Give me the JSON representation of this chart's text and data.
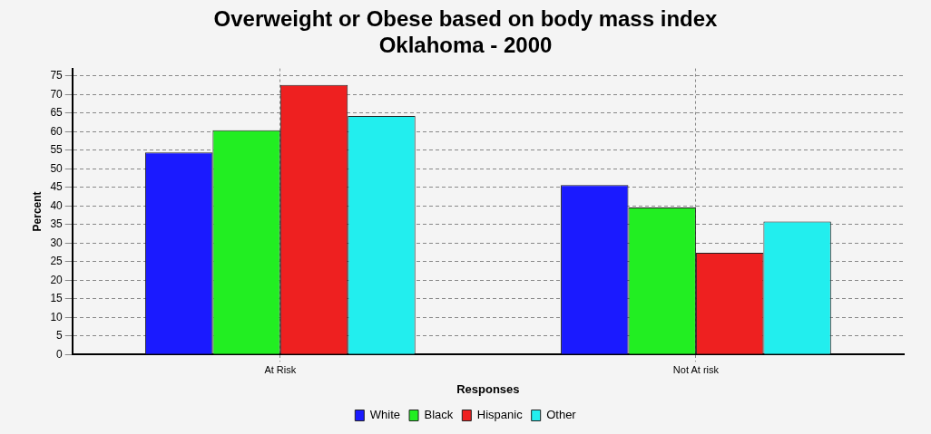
{
  "chart_data": {
    "type": "bar",
    "title": [
      "Overweight or Obese based on body mass index",
      "Oklahoma - 2000"
    ],
    "xlabel": "Responses",
    "ylabel": "Percent",
    "categories": [
      "At Risk",
      "Not At risk"
    ],
    "series": [
      {
        "name": "White",
        "color": "#1a1aff",
        "values": [
          54.4,
          45.6
        ]
      },
      {
        "name": "Black",
        "color": "#22ee22",
        "values": [
          60.4,
          39.6
        ]
      },
      {
        "name": "Hispanic",
        "color": "#ee2020",
        "values": [
          72.6,
          27.4
        ]
      },
      {
        "name": "Other",
        "color": "#22eeee",
        "values": [
          64.2,
          35.8
        ]
      }
    ],
    "ylim": [
      0,
      77
    ],
    "yticks": [
      0,
      5,
      10,
      15,
      20,
      25,
      30,
      35,
      40,
      45,
      50,
      55,
      60,
      65,
      70,
      75
    ],
    "grid": true,
    "legend": "bottom"
  }
}
